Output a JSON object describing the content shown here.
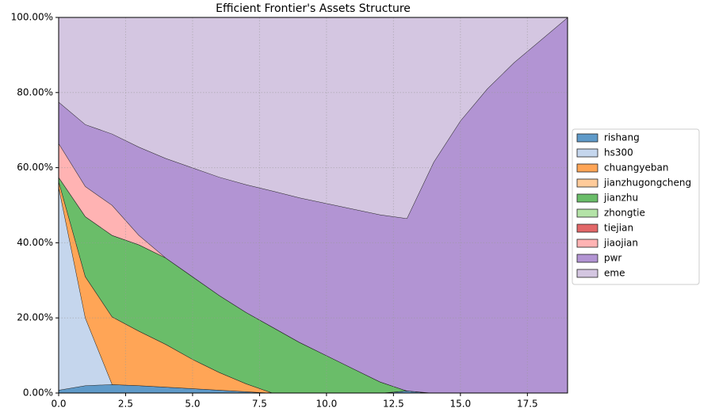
{
  "chart_data": {
    "type": "stackedarea",
    "title": "Efficient Frontier's Assets Structure",
    "x": [
      0,
      1,
      2,
      3,
      4,
      5,
      6,
      7,
      8,
      9,
      10,
      11,
      12,
      13,
      14,
      15,
      16,
      17,
      18,
      19
    ],
    "series": [
      {
        "name": "rishang",
        "color": "#5f9ac9",
        "values": [
          0.8,
          2,
          2.3,
          2,
          1.6,
          1.2,
          0.8,
          0.4,
          0,
          0,
          0,
          0,
          0,
          0.6,
          0,
          0,
          0,
          0,
          0,
          0
        ]
      },
      {
        "name": "hs300",
        "color": "#c5d6ed",
        "values": [
          54.2,
          18,
          0,
          0,
          0,
          0,
          0,
          0,
          0,
          0,
          0,
          0,
          0,
          0,
          0,
          0,
          0,
          0,
          0,
          0
        ]
      },
      {
        "name": "chuangyeban",
        "color": "#ffa556",
        "values": [
          1.5,
          11,
          18,
          14.5,
          11.4,
          7.8,
          4.7,
          2.1,
          0,
          0,
          0,
          0,
          0,
          0,
          0,
          0,
          0,
          0,
          0,
          0
        ]
      },
      {
        "name": "jianzhugongcheng",
        "color": "#ffcb9a",
        "values": [
          0,
          0,
          0,
          0,
          0,
          0,
          0,
          0,
          0,
          0,
          0,
          0,
          0,
          0,
          0,
          0,
          0,
          0,
          0,
          0
        ]
      },
      {
        "name": "jianzhu",
        "color": "#6abd69",
        "values": [
          1,
          16,
          21.7,
          23,
          23,
          22,
          20.5,
          19,
          17.5,
          13.5,
          10,
          6.5,
          3,
          0,
          0,
          0,
          0,
          0,
          0,
          0
        ]
      },
      {
        "name": "zhongtie",
        "color": "#b4e3a7",
        "values": [
          0,
          0,
          0,
          0,
          0,
          0,
          0,
          0,
          0,
          0,
          0,
          0,
          0,
          0,
          0,
          0,
          0,
          0,
          0,
          0
        ]
      },
      {
        "name": "tiejian",
        "color": "#e26768",
        "values": [
          0,
          0,
          0,
          0,
          0,
          0,
          0,
          0,
          0,
          0,
          0,
          0,
          0,
          0,
          0,
          0,
          0,
          0,
          0,
          0
        ]
      },
      {
        "name": "jiaojian",
        "color": "#ffb3b3",
        "values": [
          9,
          8,
          8,
          2.5,
          0,
          0,
          0,
          0,
          0,
          0,
          0,
          0,
          0,
          0,
          0,
          0,
          0,
          0,
          0,
          0
        ]
      },
      {
        "name": "pwr",
        "color": "#b294d3",
        "values": [
          11,
          16.5,
          19,
          23.5,
          26.5,
          29,
          31.5,
          34,
          36.3,
          38.5,
          40.5,
          42.5,
          44.5,
          45.9,
          61.5,
          72.5,
          81,
          88,
          94,
          100
        ]
      },
      {
        "name": "eme",
        "color": "#d4c6e1",
        "values": [
          22.5,
          28.5,
          31,
          34.5,
          37.5,
          40,
          42.5,
          44.5,
          46.2,
          48,
          49.5,
          51,
          52.5,
          53.5,
          38.5,
          27.5,
          19,
          12,
          6,
          0
        ]
      }
    ],
    "xlim": [
      0,
      19
    ],
    "ylim": [
      0,
      100
    ],
    "xticks": [
      {
        "value": 0,
        "label": "0.0"
      },
      2.5,
      {
        "value": 5,
        "label": "5.0"
      },
      7.5,
      {
        "value": 10,
        "label": "10.0"
      },
      12.5,
      {
        "value": 15,
        "label": "15.0"
      },
      17.5
    ],
    "yticks": [
      {
        "value": 0,
        "label": "0.00%"
      },
      {
        "value": 20,
        "label": "20.00%"
      },
      {
        "value": 40,
        "label": "40.00%"
      },
      {
        "value": 60,
        "label": "60.00%"
      },
      {
        "value": 80,
        "label": "80.00%"
      },
      {
        "value": 100,
        "label": "100.00%"
      }
    ],
    "grid": true,
    "legend": "right"
  }
}
